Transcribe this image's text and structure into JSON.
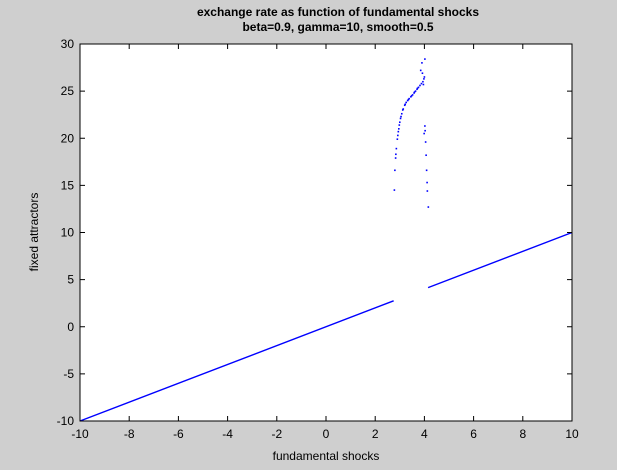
{
  "chart_data": {
    "type": "scatter",
    "title": "exchange rate as function of fundamental shocks",
    "subtitle": "beta=0.9, gamma=10, smooth=0.5",
    "xlabel": "fundamental shocks",
    "ylabel": "fixed attractors",
    "xlim": [
      -10,
      10
    ],
    "ylim": [
      -10,
      30
    ],
    "xticks": [
      "-10",
      "-8",
      "-6",
      "-4",
      "-2",
      "0",
      "2",
      "4",
      "6",
      "8",
      "10"
    ],
    "yticks": [
      "-10",
      "-5",
      "0",
      "5",
      "10",
      "15",
      "20",
      "25",
      "30"
    ],
    "grid": false,
    "series": [
      {
        "color": "#0000ff",
        "segments": [
          {
            "x": [
              -10,
              2.75
            ],
            "y": [
              -10,
              2.75
            ]
          },
          {
            "x": [
              4.15,
              10
            ],
            "y": [
              4.15,
              10
            ]
          }
        ],
        "points": [
          [
            2.78,
            14.5
          ],
          [
            2.8,
            16.6
          ],
          [
            2.83,
            17.9
          ],
          [
            2.86,
            18.9
          ],
          [
            2.9,
            19.9
          ],
          [
            2.94,
            20.7
          ],
          [
            2.98,
            21.4
          ],
          [
            3.03,
            22.1
          ],
          [
            3.08,
            22.6
          ],
          [
            3.14,
            23.1
          ],
          [
            3.2,
            23.5
          ],
          [
            3.26,
            23.8
          ],
          [
            3.32,
            24.0
          ],
          [
            3.38,
            24.2
          ],
          [
            3.45,
            24.4
          ],
          [
            3.52,
            24.6
          ],
          [
            3.58,
            24.8
          ],
          [
            3.64,
            25.0
          ],
          [
            3.7,
            25.2
          ],
          [
            3.76,
            25.4
          ],
          [
            3.82,
            25.6
          ],
          [
            3.88,
            25.8
          ],
          [
            3.94,
            26.0
          ],
          [
            3.98,
            26.3
          ],
          [
            4.0,
            26.5
          ],
          [
            3.92,
            26.9
          ],
          [
            3.85,
            27.2
          ],
          [
            3.9,
            28.0
          ],
          [
            4.02,
            28.4
          ],
          [
            3.96,
            25.7
          ],
          [
            3.72,
            25.3
          ],
          [
            3.6,
            24.9
          ],
          [
            3.48,
            24.5
          ],
          [
            3.35,
            24.1
          ],
          [
            3.22,
            23.6
          ],
          [
            3.12,
            23.0
          ],
          [
            3.05,
            22.3
          ],
          [
            3.0,
            21.7
          ],
          [
            2.96,
            21.0
          ],
          [
            2.92,
            20.3
          ],
          [
            4.02,
            21.3
          ],
          [
            4.03,
            20.8
          ],
          [
            4.05,
            19.6
          ],
          [
            4.07,
            18.2
          ],
          [
            4.09,
            16.6
          ],
          [
            4.11,
            15.3
          ],
          [
            4.12,
            14.4
          ],
          [
            4.16,
            12.7
          ],
          [
            3.99,
            20.5
          ],
          [
            2.84,
            18.3
          ]
        ]
      }
    ]
  }
}
